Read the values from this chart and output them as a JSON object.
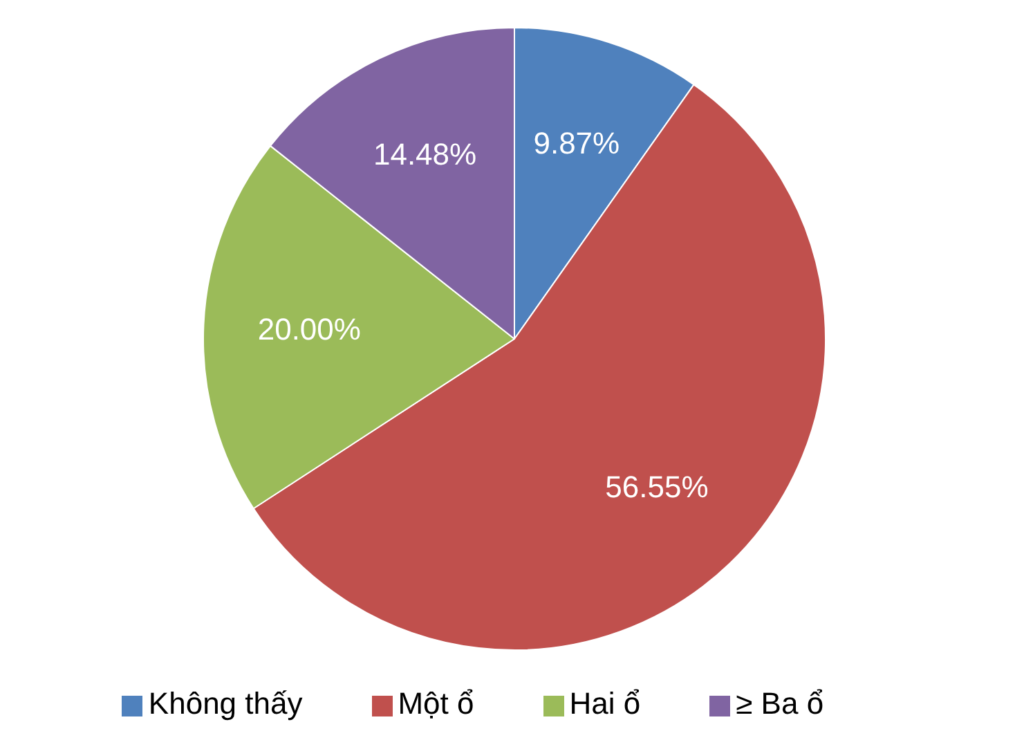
{
  "chart_data": {
    "type": "pie",
    "categories": [
      "Không thấy",
      "Một ổ",
      "Hai ổ",
      "≥ Ba ổ"
    ],
    "values": [
      9.87,
      56.55,
      20.0,
      14.48
    ],
    "value_labels": [
      "9.87%",
      "56.55%",
      "20.00%",
      "14.48%"
    ],
    "colors": [
      "#4f81bd",
      "#c0504d",
      "#9bbb59",
      "#8064a2"
    ],
    "legend": "bottom"
  }
}
